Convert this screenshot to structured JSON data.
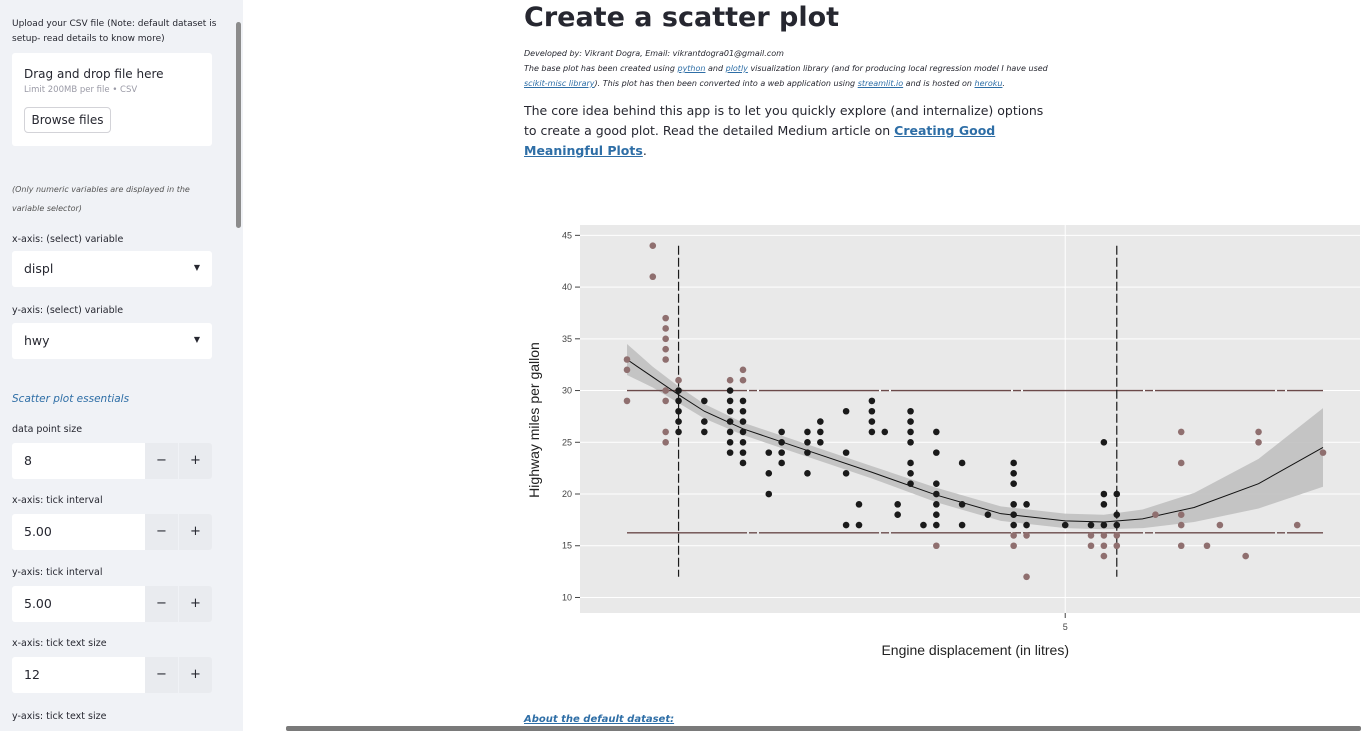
{
  "sidebar": {
    "upload_label_1": "Upload your CSV file (Note: default dataset is",
    "upload_label_2": "setup- read details to know more)",
    "uploader": {
      "title": "Drag and drop file here",
      "limit": "Limit 200MB per file • CSV",
      "browse_label": "Browse files"
    },
    "note_1": "(Only numeric variables are displayed in the",
    "note_2": "variable selector)",
    "x_select_label": "x-axis: (select) variable",
    "x_select_value": "displ",
    "y_select_label": "y-axis: (select) variable",
    "y_select_value": "hwy",
    "section_title": "Scatter plot essentials",
    "point_size_label": "data point size",
    "point_size_value": "8",
    "x_tick_interval_label": "x-axis: tick interval",
    "x_tick_interval_value": "5.00",
    "y_tick_interval_label": "y-axis: tick interval",
    "y_tick_interval_value": "5.00",
    "x_tick_size_label": "x-axis: tick text size",
    "x_tick_size_value": "12",
    "y_tick_size_label": "y-axis: tick text size",
    "minus": "−",
    "plus": "+",
    "caret": "▼"
  },
  "main": {
    "title": "Create a scatter plot",
    "developed_by": "Developed by: Vikrant Dogra, Email: vikrantdogra01@gmail.com",
    "desc_a": "The base plot has been created using ",
    "desc_python": "python",
    "desc_and": " and ",
    "desc_plotly": "plotly",
    "desc_b": " visualization library (and for producing local regression model I have used",
    "desc_scikit": "scikit-misc library",
    "desc_c": "). This plot has then been converted into a web application using ",
    "desc_streamlit": "streamlit.io",
    "desc_d": " and is hosted on ",
    "desc_heroku": "heroku",
    "desc_e": ".",
    "intro_a": "The core idea behind this app is to let you quickly explore (and internalize) options to create a good plot. Read the detailed Medium article on ",
    "intro_link": "Creating Good Meaningful Plots",
    "intro_b": ".",
    "about": "About the default dataset:"
  },
  "chart_data": {
    "type": "scatter",
    "xlabel": "Engine displacement (in litres)",
    "ylabel": "Highway miles per gallon",
    "xlim": [
      1.6,
      7.0
    ],
    "ylim": [
      10,
      45
    ],
    "x_ticks": [
      5
    ],
    "y_ticks": [
      10,
      15,
      20,
      25,
      30,
      35,
      40,
      45
    ],
    "grid": true,
    "colors": {
      "background": "#e9e9e9",
      "point_dark": "#1a1a1a",
      "point_outlier": "#8f6f6f",
      "smooth_band": "#c0c0c0",
      "hline": "#6b4a4a",
      "vline": "#1a1a1a"
    },
    "reference_lines": {
      "hlines": [
        30,
        16.25
      ],
      "vlines": [
        2.0,
        5.4
      ]
    },
    "smooth": {
      "x": [
        1.6,
        1.8,
        2.0,
        2.2,
        2.5,
        3.0,
        3.5,
        4.0,
        4.5,
        5.0,
        5.3,
        5.6,
        6.0,
        6.5,
        7.0
      ],
      "y": [
        33,
        31.3,
        29.6,
        28.0,
        26.3,
        24.2,
        22.1,
        19.9,
        18.1,
        17.4,
        17.3,
        17.6,
        18.7,
        21.0,
        24.5
      ],
      "band": [
        1.5,
        1.0,
        0.8,
        0.7,
        0.6,
        0.6,
        0.6,
        0.7,
        0.7,
        0.7,
        0.7,
        0.9,
        1.4,
        2.4,
        3.8
      ]
    },
    "points": [
      {
        "x": 1.6,
        "y": 33,
        "o": 1
      },
      {
        "x": 1.6,
        "y": 32,
        "o": 1
      },
      {
        "x": 1.6,
        "y": 29,
        "o": 1
      },
      {
        "x": 1.8,
        "y": 44,
        "o": 1
      },
      {
        "x": 1.8,
        "y": 41,
        "o": 1
      },
      {
        "x": 1.9,
        "y": 37,
        "o": 1
      },
      {
        "x": 1.9,
        "y": 36,
        "o": 1
      },
      {
        "x": 1.9,
        "y": 35,
        "o": 1
      },
      {
        "x": 1.9,
        "y": 34,
        "o": 1
      },
      {
        "x": 1.9,
        "y": 33,
        "o": 1
      },
      {
        "x": 1.9,
        "y": 30,
        "o": 1
      },
      {
        "x": 1.9,
        "y": 29,
        "o": 1
      },
      {
        "x": 1.9,
        "y": 26,
        "o": 1
      },
      {
        "x": 1.9,
        "y": 25,
        "o": 1
      },
      {
        "x": 2.0,
        "y": 31,
        "o": 1
      },
      {
        "x": 2.0,
        "y": 30,
        "o": 0
      },
      {
        "x": 2.0,
        "y": 29,
        "o": 0
      },
      {
        "x": 2.0,
        "y": 28,
        "o": 0
      },
      {
        "x": 2.0,
        "y": 27,
        "o": 0
      },
      {
        "x": 2.0,
        "y": 26,
        "o": 0
      },
      {
        "x": 2.2,
        "y": 29,
        "o": 0
      },
      {
        "x": 2.2,
        "y": 27,
        "o": 0
      },
      {
        "x": 2.2,
        "y": 26,
        "o": 0
      },
      {
        "x": 2.4,
        "y": 31,
        "o": 1
      },
      {
        "x": 2.4,
        "y": 30,
        "o": 0
      },
      {
        "x": 2.4,
        "y": 29,
        "o": 0
      },
      {
        "x": 2.4,
        "y": 28,
        "o": 0
      },
      {
        "x": 2.4,
        "y": 27,
        "o": 0
      },
      {
        "x": 2.4,
        "y": 26,
        "o": 0
      },
      {
        "x": 2.4,
        "y": 25,
        "o": 0
      },
      {
        "x": 2.4,
        "y": 24,
        "o": 0
      },
      {
        "x": 2.5,
        "y": 32,
        "o": 1
      },
      {
        "x": 2.5,
        "y": 31,
        "o": 1
      },
      {
        "x": 2.5,
        "y": 29,
        "o": 0
      },
      {
        "x": 2.5,
        "y": 28,
        "o": 0
      },
      {
        "x": 2.5,
        "y": 27,
        "o": 0
      },
      {
        "x": 2.5,
        "y": 26,
        "o": 0
      },
      {
        "x": 2.5,
        "y": 25,
        "o": 0
      },
      {
        "x": 2.5,
        "y": 24,
        "o": 0
      },
      {
        "x": 2.5,
        "y": 23,
        "o": 0
      },
      {
        "x": 2.7,
        "y": 24,
        "o": 0
      },
      {
        "x": 2.7,
        "y": 22,
        "o": 0
      },
      {
        "x": 2.7,
        "y": 20,
        "o": 0
      },
      {
        "x": 2.8,
        "y": 26,
        "o": 0
      },
      {
        "x": 2.8,
        "y": 25,
        "o": 0
      },
      {
        "x": 2.8,
        "y": 24,
        "o": 0
      },
      {
        "x": 2.8,
        "y": 23,
        "o": 0
      },
      {
        "x": 3.0,
        "y": 26,
        "o": 0
      },
      {
        "x": 3.0,
        "y": 25,
        "o": 0
      },
      {
        "x": 3.0,
        "y": 24,
        "o": 0
      },
      {
        "x": 3.0,
        "y": 22,
        "o": 0
      },
      {
        "x": 3.1,
        "y": 27,
        "o": 0
      },
      {
        "x": 3.1,
        "y": 26,
        "o": 0
      },
      {
        "x": 3.1,
        "y": 25,
        "o": 0
      },
      {
        "x": 3.3,
        "y": 28,
        "o": 0
      },
      {
        "x": 3.3,
        "y": 24,
        "o": 0
      },
      {
        "x": 3.3,
        "y": 22,
        "o": 0
      },
      {
        "x": 3.3,
        "y": 17,
        "o": 0
      },
      {
        "x": 3.4,
        "y": 19,
        "o": 0
      },
      {
        "x": 3.4,
        "y": 17,
        "o": 0
      },
      {
        "x": 3.5,
        "y": 29,
        "o": 0
      },
      {
        "x": 3.5,
        "y": 28,
        "o": 0
      },
      {
        "x": 3.5,
        "y": 27,
        "o": 0
      },
      {
        "x": 3.5,
        "y": 26,
        "o": 0
      },
      {
        "x": 3.6,
        "y": 26,
        "o": 0
      },
      {
        "x": 3.7,
        "y": 19,
        "o": 0
      },
      {
        "x": 3.7,
        "y": 18,
        "o": 0
      },
      {
        "x": 3.8,
        "y": 28,
        "o": 0
      },
      {
        "x": 3.8,
        "y": 27,
        "o": 0
      },
      {
        "x": 3.8,
        "y": 26,
        "o": 0
      },
      {
        "x": 3.8,
        "y": 25,
        "o": 0
      },
      {
        "x": 3.8,
        "y": 23,
        "o": 0
      },
      {
        "x": 3.8,
        "y": 22,
        "o": 0
      },
      {
        "x": 3.8,
        "y": 21,
        "o": 0
      },
      {
        "x": 3.9,
        "y": 17,
        "o": 0
      },
      {
        "x": 4.0,
        "y": 26,
        "o": 0
      },
      {
        "x": 4.0,
        "y": 24,
        "o": 0
      },
      {
        "x": 4.0,
        "y": 21,
        "o": 0
      },
      {
        "x": 4.0,
        "y": 20,
        "o": 0
      },
      {
        "x": 4.0,
        "y": 19,
        "o": 0
      },
      {
        "x": 4.0,
        "y": 18,
        "o": 0
      },
      {
        "x": 4.0,
        "y": 17,
        "o": 0
      },
      {
        "x": 4.0,
        "y": 15,
        "o": 1
      },
      {
        "x": 4.2,
        "y": 23,
        "o": 0
      },
      {
        "x": 4.2,
        "y": 19,
        "o": 0
      },
      {
        "x": 4.2,
        "y": 17,
        "o": 0
      },
      {
        "x": 4.4,
        "y": 18,
        "o": 0
      },
      {
        "x": 4.6,
        "y": 23,
        "o": 0
      },
      {
        "x": 4.6,
        "y": 22,
        "o": 0
      },
      {
        "x": 4.6,
        "y": 21,
        "o": 0
      },
      {
        "x": 4.6,
        "y": 19,
        "o": 0
      },
      {
        "x": 4.6,
        "y": 18,
        "o": 0
      },
      {
        "x": 4.6,
        "y": 17,
        "o": 0
      },
      {
        "x": 4.6,
        "y": 16,
        "o": 1
      },
      {
        "x": 4.6,
        "y": 15,
        "o": 1
      },
      {
        "x": 4.7,
        "y": 19,
        "o": 0
      },
      {
        "x": 4.7,
        "y": 17,
        "o": 0
      },
      {
        "x": 4.7,
        "y": 16,
        "o": 1
      },
      {
        "x": 4.7,
        "y": 12,
        "o": 1
      },
      {
        "x": 5.0,
        "y": 17,
        "o": 0
      },
      {
        "x": 5.2,
        "y": 17,
        "o": 0
      },
      {
        "x": 5.2,
        "y": 16,
        "o": 1
      },
      {
        "x": 5.2,
        "y": 15,
        "o": 1
      },
      {
        "x": 5.3,
        "y": 25,
        "o": 0
      },
      {
        "x": 5.3,
        "y": 20,
        "o": 0
      },
      {
        "x": 5.3,
        "y": 19,
        "o": 0
      },
      {
        "x": 5.3,
        "y": 17,
        "o": 0
      },
      {
        "x": 5.3,
        "y": 16,
        "o": 1
      },
      {
        "x": 5.3,
        "y": 15,
        "o": 1
      },
      {
        "x": 5.3,
        "y": 14,
        "o": 1
      },
      {
        "x": 5.4,
        "y": 20,
        "o": 0
      },
      {
        "x": 5.4,
        "y": 18,
        "o": 0
      },
      {
        "x": 5.4,
        "y": 17,
        "o": 0
      },
      {
        "x": 5.4,
        "y": 16,
        "o": 1
      },
      {
        "x": 5.4,
        "y": 15,
        "o": 1
      },
      {
        "x": 5.7,
        "y": 18,
        "o": 1
      },
      {
        "x": 5.9,
        "y": 26,
        "o": 1
      },
      {
        "x": 5.9,
        "y": 23,
        "o": 1
      },
      {
        "x": 5.9,
        "y": 18,
        "o": 1
      },
      {
        "x": 5.9,
        "y": 17,
        "o": 1
      },
      {
        "x": 5.9,
        "y": 15,
        "o": 1
      },
      {
        "x": 6.1,
        "y": 15,
        "o": 1
      },
      {
        "x": 6.2,
        "y": 17,
        "o": 1
      },
      {
        "x": 6.4,
        "y": 14,
        "o": 1
      },
      {
        "x": 6.5,
        "y": 26,
        "o": 1
      },
      {
        "x": 6.5,
        "y": 25,
        "o": 1
      },
      {
        "x": 6.8,
        "y": 17,
        "o": 1
      },
      {
        "x": 7.0,
        "y": 24,
        "o": 1
      }
    ]
  }
}
